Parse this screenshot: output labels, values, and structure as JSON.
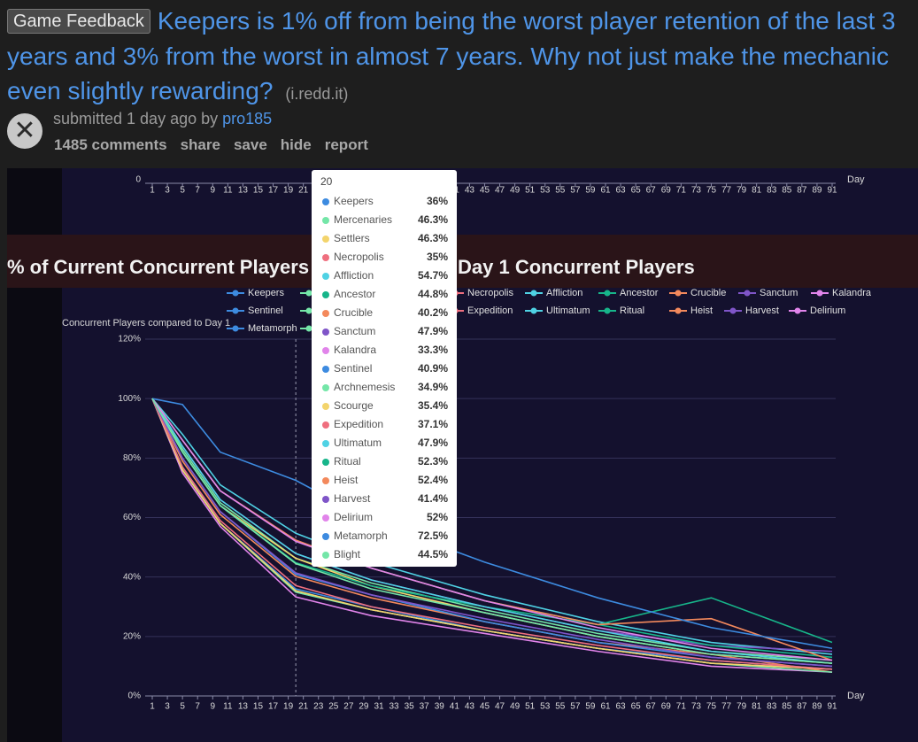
{
  "post": {
    "flair": "Game Feedback",
    "title": "Keepers is 1% off from being the worst player retention of the last 3 years and 3% from the worst in almost 7 years. Why not just make the mechanic even slightly rewarding?",
    "domain": "(i.redd.it)",
    "submitted": "submitted 1 day ago by",
    "author": "pro185",
    "links": [
      "1485 comments",
      "share",
      "save",
      "hide",
      "report"
    ]
  },
  "chart_data": {
    "type": "line",
    "title": "% of Current Concurrent Players",
    "title_right": "Day 1 Concurrent Players",
    "y_label": "Concurrent Players compared to Day 1",
    "x_label": "Day",
    "x": [
      1,
      5,
      10,
      20,
      30,
      45,
      60,
      75,
      91
    ],
    "xlim": [
      1,
      91
    ],
    "xticks": [
      1,
      3,
      5,
      7,
      9,
      11,
      13,
      15,
      17,
      19,
      21,
      23,
      25,
      27,
      29,
      31,
      33,
      35,
      37,
      39,
      41,
      43,
      45,
      47,
      49,
      51,
      53,
      55,
      57,
      59,
      61,
      63,
      65,
      67,
      69,
      71,
      73,
      75,
      77,
      79,
      81,
      83,
      85,
      87,
      89,
      91
    ],
    "ylim": [
      0,
      120
    ],
    "yticks": [
      {
        "value": 0,
        "label": "0%"
      },
      {
        "value": 20,
        "label": "20%"
      },
      {
        "value": 40,
        "label": "40%"
      },
      {
        "value": 60,
        "label": "60%"
      },
      {
        "value": 80,
        "label": "80%"
      },
      {
        "value": 100,
        "label": "100%"
      },
      {
        "value": 120,
        "label": "120%"
      }
    ],
    "grid": true,
    "top_strip_yticks": [
      0
    ],
    "series": [
      {
        "name": "Keepers",
        "color": "#3d8be0",
        "values": [
          100,
          77,
          58,
          36,
          30,
          22,
          16,
          12,
          9
        ]
      },
      {
        "name": "Mercenaries",
        "color": "#74e6a8",
        "values": [
          100,
          83,
          65,
          46.3,
          38,
          29,
          21,
          15,
          12
        ]
      },
      {
        "name": "Settlers",
        "color": "#f3d46c",
        "values": [
          100,
          82,
          64,
          46.3,
          37,
          28,
          20,
          14,
          11
        ]
      },
      {
        "name": "Necropolis",
        "color": "#ef6f7f",
        "values": [
          100,
          76,
          58,
          35,
          29,
          22,
          16,
          11,
          9
        ]
      },
      {
        "name": "Affliction",
        "color": "#4fd2e4",
        "values": [
          100,
          88,
          71,
          54.7,
          45,
          34,
          25,
          18,
          14
        ]
      },
      {
        "name": "Ancestor",
        "color": "#17b58a",
        "values": [
          100,
          82,
          64,
          44.8,
          37,
          30,
          24,
          33,
          18
        ]
      },
      {
        "name": "Crucible",
        "color": "#f3895c",
        "values": [
          100,
          79,
          61,
          40.2,
          33,
          25,
          18,
          14,
          8
        ]
      },
      {
        "name": "Sanctum",
        "color": "#7f55c8",
        "values": [
          100,
          84,
          66,
          47.9,
          39,
          30,
          22,
          17,
          15
        ]
      },
      {
        "name": "Kalandra",
        "color": "#e184ea",
        "values": [
          100,
          75,
          57,
          33.3,
          27,
          21,
          15,
          10,
          8
        ]
      },
      {
        "name": "Sentinel",
        "color": "#3d8be0",
        "values": [
          100,
          80,
          62,
          40.9,
          34,
          25,
          18,
          13,
          10
        ]
      },
      {
        "name": "Archnemesis",
        "color": "#74e6a8",
        "values": [
          100,
          76,
          58,
          34.9,
          29,
          22,
          16,
          11,
          8
        ]
      },
      {
        "name": "Scourge",
        "color": "#f3d46c",
        "values": [
          100,
          76,
          58,
          35.4,
          29,
          22,
          16,
          11,
          9
        ]
      },
      {
        "name": "Expedition",
        "color": "#ef6f7f",
        "values": [
          100,
          77,
          59,
          37.1,
          30,
          23,
          17,
          12,
          9
        ]
      },
      {
        "name": "Ultimatum",
        "color": "#4fd2e4",
        "values": [
          100,
          84,
          66,
          47.9,
          39,
          30,
          22,
          15,
          11
        ]
      },
      {
        "name": "Ritual",
        "color": "#17b58a",
        "values": [
          100,
          86,
          69,
          52.3,
          43,
          32,
          24,
          17,
          13
        ]
      },
      {
        "name": "Heist",
        "color": "#f3895c",
        "values": [
          100,
          86,
          69,
          52.4,
          43,
          32,
          24,
          26,
          12
        ]
      },
      {
        "name": "Harvest",
        "color": "#7f55c8",
        "values": [
          100,
          80,
          62,
          41.4,
          34,
          26,
          19,
          13,
          10
        ]
      },
      {
        "name": "Delirium",
        "color": "#e184ea",
        "values": [
          100,
          86,
          69,
          52,
          43,
          32,
          23,
          16,
          12
        ]
      },
      {
        "name": "Metamorph",
        "color": "#3d8be0",
        "values": [
          100,
          98,
          82,
          72.5,
          59,
          45,
          33,
          23,
          16
        ]
      },
      {
        "name": "Blight",
        "color": "#74e6a8",
        "values": [
          100,
          82,
          64,
          44.5,
          36,
          28,
          20,
          14,
          11
        ]
      }
    ],
    "tooltip": {
      "title": 20,
      "labels": [
        "36%",
        "46.3%",
        "46.3%",
        "35%",
        "54.7%",
        "44.8%",
        "40.2%",
        "47.9%",
        "33.3%",
        "40.9%",
        "34.9%",
        "35.4%",
        "37.1%",
        "47.9%",
        "52.3%",
        "52.4%",
        "41.4%",
        "52%",
        "72.5%",
        "44.5%"
      ]
    }
  }
}
